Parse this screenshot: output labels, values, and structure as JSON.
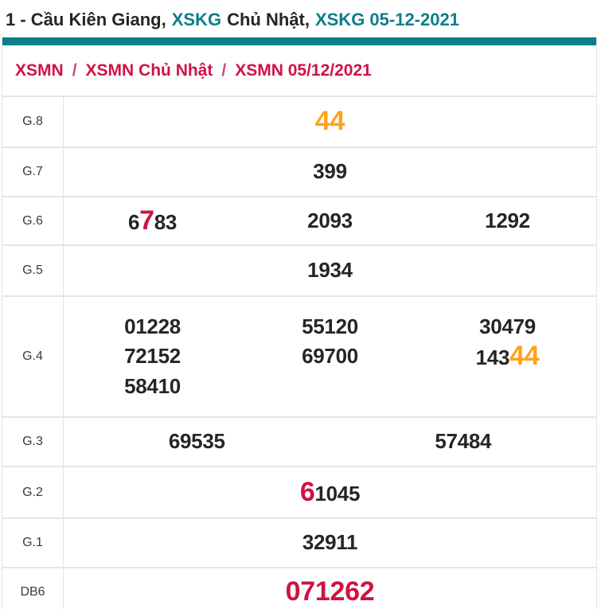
{
  "title": {
    "part1": "1 - Cầu Kiên Giang,",
    "part2": "XSKG",
    "part3": "Chủ Nhật,",
    "part4": "XSKG 05-12-2021"
  },
  "breadcrumb": {
    "separator": "/",
    "items": [
      {
        "label": "XSMN"
      },
      {
        "label": "XSMN Chủ Nhật"
      },
      {
        "label": "XSMN 05/12/2021"
      }
    ]
  },
  "results": {
    "rows": [
      {
        "label": "G.8",
        "values": [
          {
            "segments": [
              {
                "text": "44",
                "style": "orange-big"
              }
            ]
          }
        ]
      },
      {
        "label": "G.7",
        "values": [
          {
            "segments": [
              {
                "text": "399",
                "style": "normal"
              }
            ]
          }
        ]
      },
      {
        "label": "G.6",
        "values": [
          {
            "segments": [
              {
                "text": "6",
                "style": "normal"
              },
              {
                "text": "7",
                "style": "red-big"
              },
              {
                "text": "83",
                "style": "normal"
              }
            ]
          },
          {
            "segments": [
              {
                "text": "2093",
                "style": "normal"
              }
            ]
          },
          {
            "segments": [
              {
                "text": "1292",
                "style": "normal"
              }
            ]
          }
        ]
      },
      {
        "label": "G.5",
        "values": [
          {
            "segments": [
              {
                "text": "1934",
                "style": "normal"
              }
            ]
          }
        ]
      },
      {
        "label": "G.4",
        "values": [
          {
            "segments": [
              {
                "text": "01228",
                "style": "normal"
              }
            ]
          },
          {
            "segments": [
              {
                "text": "55120",
                "style": "normal"
              }
            ]
          },
          {
            "segments": [
              {
                "text": "30479",
                "style": "normal"
              }
            ]
          },
          {
            "segments": [
              {
                "text": "72152",
                "style": "normal"
              }
            ]
          },
          {
            "segments": [
              {
                "text": "69700",
                "style": "normal"
              }
            ]
          },
          {
            "segments": [
              {
                "text": "143",
                "style": "normal"
              },
              {
                "text": "44",
                "style": "orange-big"
              }
            ]
          },
          {
            "segments": [
              {
                "text": "58410",
                "style": "normal"
              }
            ]
          }
        ]
      },
      {
        "label": "G.3",
        "values": [
          {
            "segments": [
              {
                "text": "69535",
                "style": "normal"
              }
            ]
          },
          {
            "segments": [
              {
                "text": "57484",
                "style": "normal"
              }
            ]
          }
        ]
      },
      {
        "label": "G.2",
        "values": [
          {
            "segments": [
              {
                "text": "6",
                "style": "red-big"
              },
              {
                "text": "1045",
                "style": "normal"
              }
            ]
          }
        ]
      },
      {
        "label": "G.1",
        "values": [
          {
            "segments": [
              {
                "text": "32911",
                "style": "normal"
              }
            ]
          }
        ]
      },
      {
        "label": "DB6",
        "values": [
          {
            "segments": [
              {
                "text": "071262",
                "style": "red-big"
              }
            ]
          }
        ]
      }
    ]
  },
  "colors": {
    "accent_teal": "#0d7f87",
    "highlight_red": "#d01243",
    "highlight_orange": "#ffa21c",
    "text_dark": "#252525",
    "border_gray": "#e5e5e5"
  }
}
